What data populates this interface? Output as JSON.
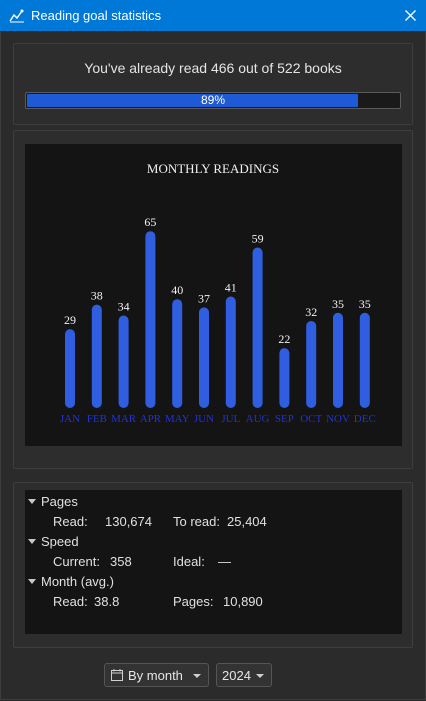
{
  "window": {
    "title": "Reading goal statistics",
    "icon": "line-chart-icon",
    "close_icon": "close-icon"
  },
  "progress": {
    "summary": "You've already read 466 out of 522 books",
    "read": 466,
    "goal": 522,
    "percent_label": "89%",
    "percent": 89,
    "fill_color": "#1f5ad6"
  },
  "chart_data": {
    "type": "bar",
    "title": "MONTHLY READINGS",
    "categories": [
      "JAN",
      "FEB",
      "MAR",
      "APR",
      "MAY",
      "JUN",
      "JUL",
      "AUG",
      "SEP",
      "OCT",
      "NOV",
      "DEC"
    ],
    "values": [
      29,
      38,
      34,
      65,
      40,
      37,
      41,
      59,
      22,
      32,
      35,
      35
    ],
    "value_labels": [
      "29",
      "38",
      "34",
      "65",
      "40",
      "37",
      "41",
      "59",
      "22",
      "32",
      "35",
      "35"
    ],
    "ylim": [
      0,
      80
    ],
    "grid": false,
    "bar_color": "#2f5fe0",
    "category_label_color": "#1f33d6",
    "value_label_color": "#f0f0f0",
    "background": "#141414"
  },
  "stats": {
    "pages": {
      "group": "Pages",
      "read_label": "Read:",
      "read_value": "130,674",
      "toread_label": "To read:",
      "toread_value": "25,404"
    },
    "speed": {
      "group": "Speed",
      "current_label": "Current:",
      "current_value": "358",
      "ideal_label": "Ideal:",
      "ideal_value": "—"
    },
    "month": {
      "group": "Month (avg.)",
      "read_label": "Read:",
      "read_value": "38.8",
      "pages_label": "Pages:",
      "pages_value": "10,890"
    }
  },
  "controls": {
    "view_selected": "By month",
    "view_icon": "calendar-icon",
    "year_selected": "2024"
  }
}
